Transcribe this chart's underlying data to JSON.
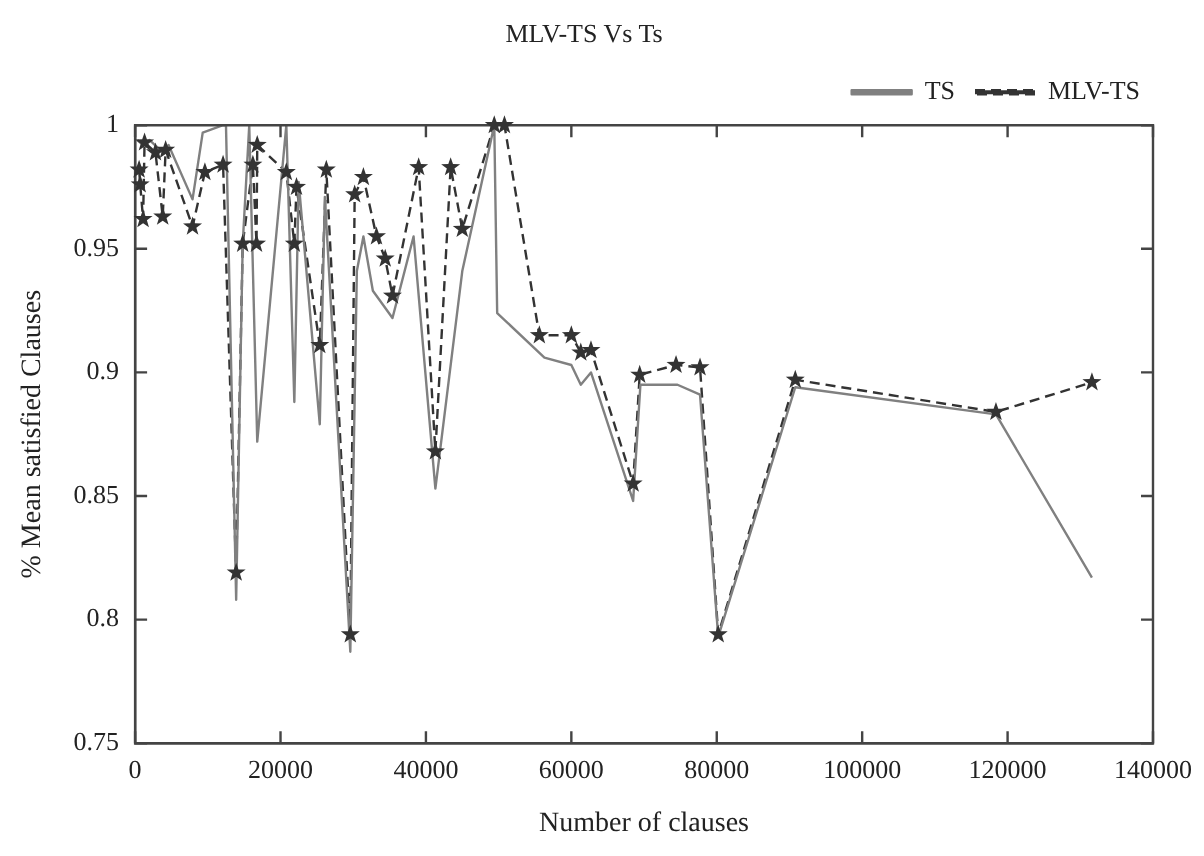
{
  "chart_data": {
    "type": "line",
    "title": "MLV-TS Vs Ts",
    "xlabel": "Number of clauses",
    "ylabel": "% Mean satisfied Clauses",
    "xlim": [
      0,
      140000
    ],
    "xticks": [
      0,
      20000,
      40000,
      60000,
      80000,
      100000,
      120000,
      140000
    ],
    "ylim": [
      0.75,
      1
    ],
    "yticks": [
      0.75,
      0.8,
      0.85,
      0.9,
      0.95,
      1
    ],
    "grid": false,
    "legend": "top right",
    "series": [
      {
        "name": "TS",
        "color": "#808080",
        "line_style": "solid",
        "marker": "none",
        "x": [
          300,
          1100,
          2000,
          3800,
          4600,
          7900,
          9300,
          12100,
          12500,
          13900,
          14800,
          15700,
          16800,
          20800,
          21900,
          22500,
          25400,
          26100,
          29600,
          30500,
          31400,
          32700,
          35400,
          38300,
          41300,
          45000,
          49400,
          49800,
          56300,
          60000,
          61300,
          62700,
          68500,
          69500,
          74600,
          77700,
          80200,
          90800,
          118400,
          131600
        ],
        "values": [
          0.994,
          0.992,
          0.994,
          0.989,
          0.992,
          0.97,
          0.997,
          1.0,
          1.0,
          0.808,
          0.952,
          1.0,
          0.872,
          1.0,
          0.888,
          0.977,
          0.879,
          0.971,
          0.787,
          0.941,
          0.955,
          0.933,
          0.922,
          0.955,
          0.853,
          0.941,
          1.0,
          0.924,
          0.906,
          0.903,
          0.895,
          0.9,
          0.848,
          0.895,
          0.895,
          0.891,
          0.793,
          0.894,
          0.883,
          0.817
        ]
      },
      {
        "name": "MLV-TS",
        "color": "#333333",
        "line_style": "dashed",
        "marker": "star",
        "x": [
          550,
          700,
          1100,
          1300,
          2800,
          3800,
          4200,
          7900,
          9600,
          12100,
          13900,
          14800,
          16200,
          16700,
          16800,
          20800,
          21900,
          22200,
          25400,
          26300,
          29600,
          30200,
          31400,
          33200,
          34400,
          35400,
          39000,
          41300,
          43400,
          45000,
          49400,
          50800,
          55600,
          60000,
          61300,
          62700,
          68500,
          69400,
          74400,
          77700,
          80200,
          90800,
          118400,
          131600
        ],
        "values": [
          0.982,
          0.976,
          0.962,
          0.993,
          0.989,
          0.963,
          0.99,
          0.959,
          0.981,
          0.984,
          0.819,
          0.952,
          0.984,
          0.952,
          0.992,
          0.981,
          0.952,
          0.975,
          0.911,
          0.982,
          0.794,
          0.972,
          0.979,
          0.955,
          0.946,
          0.931,
          0.983,
          0.868,
          0.983,
          0.958,
          1.0,
          1.0,
          0.915,
          0.915,
          0.908,
          0.909,
          0.855,
          0.899,
          0.903,
          0.902,
          0.794,
          0.897,
          0.884,
          0.896
        ]
      }
    ]
  }
}
